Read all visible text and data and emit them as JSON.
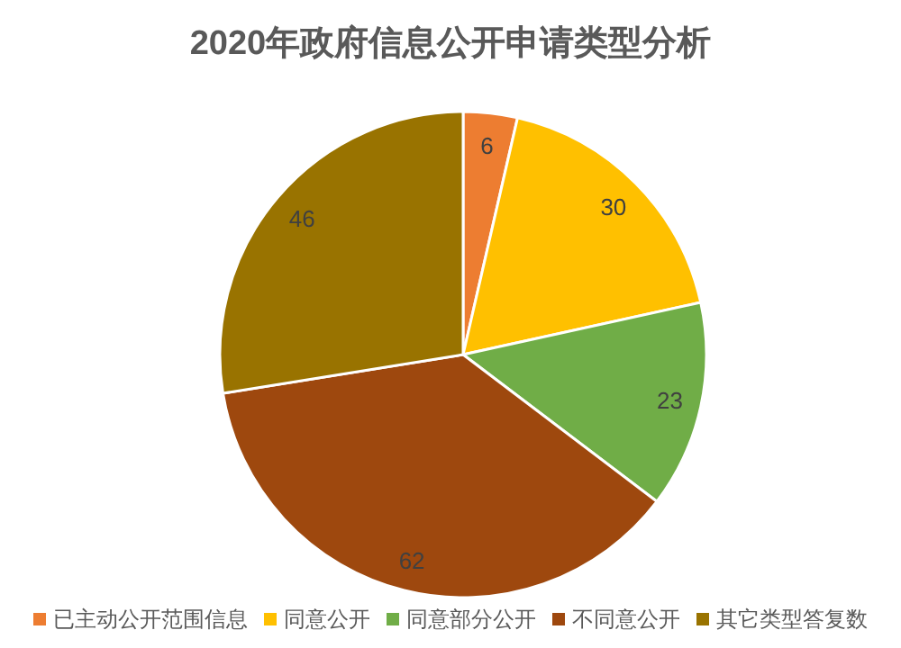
{
  "chart_data": {
    "type": "pie",
    "title": "2020年政府信息公开申请类型分析",
    "categories": [
      "已主动公开范围信息",
      "同意公开",
      "同意部分公开",
      "不同意公开",
      "其它类型答复数"
    ],
    "values": [
      6,
      30,
      23,
      62,
      46
    ],
    "colors": [
      "#ed7d31",
      "#ffc000",
      "#70ad47",
      "#9e480e",
      "#997300"
    ],
    "data_labels": true,
    "legend": "bottom"
  }
}
